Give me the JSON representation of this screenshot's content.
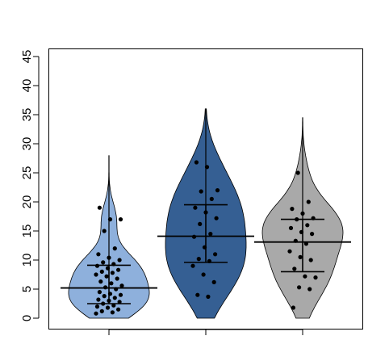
{
  "chart_data": {
    "type": "violin",
    "title": "",
    "xlabel": "",
    "ylabel": "",
    "ylim": [
      0,
      45
    ],
    "y_ticks": [
      "0",
      "5",
      "10",
      "15",
      "20",
      "25",
      "30",
      "35",
      "40",
      "45"
    ],
    "x_tick_count": 3,
    "grid": false,
    "series": [
      {
        "color": "#8eb0dc",
        "mean": 5.2,
        "sd_lower": 2.5,
        "sd_upper": 9.1,
        "whisker_max": 28,
        "points": [
          0.8,
          1.0,
          1.2,
          1.5,
          1.8,
          2.0,
          2.2,
          2.5,
          2.8,
          3.0,
          3.2,
          3.5,
          3.8,
          4.0,
          4.2,
          4.5,
          5.0,
          5.3,
          5.6,
          6.0,
          6.3,
          6.8,
          7.2,
          7.5,
          7.8,
          8.0,
          8.3,
          8.6,
          9.0,
          9.3,
          9.6,
          10.0,
          10.4,
          11.0,
          12.0,
          15.0,
          17.0,
          17.0,
          19.0
        ]
      },
      {
        "color": "#355f93",
        "mean": 14.1,
        "sd_lower": 9.6,
        "sd_upper": 19.5,
        "whisker_max": 36,
        "points": [
          3.7,
          4.0,
          6.2,
          7.5,
          9.0,
          9.8,
          10.2,
          11.0,
          12.2,
          14.0,
          14.5,
          16.2,
          17.2,
          18.2,
          19.0,
          20.5,
          21.8,
          22.0,
          26.0,
          26.8
        ]
      },
      {
        "color": "#a9a9a9",
        "mean": 13.1,
        "sd_lower": 8.0,
        "sd_upper": 17.0,
        "whisker_max": 34.5,
        "points": [
          1.8,
          5.0,
          5.3,
          7.0,
          7.2,
          8.5,
          10.0,
          10.5,
          11.5,
          12.8,
          13.3,
          14.5,
          14.8,
          15.5,
          16.0,
          17.0,
          17.2,
          18.0,
          18.8,
          20.0,
          25.0
        ]
      }
    ]
  }
}
